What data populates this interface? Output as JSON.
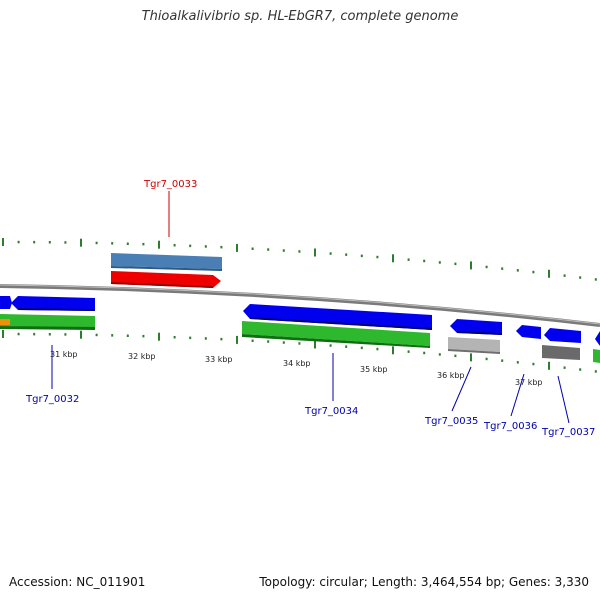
{
  "title": "Thioalkalivibrio sp. HL-EbGR7, complete genome",
  "footer": {
    "accession": "Accession: NC_011901",
    "topology": "Topology: circular; Length: 3,464,554 bp; Genes: 3,330"
  },
  "colors": {
    "cds_forward": "#0000ee",
    "cds_reverse": "#2db82d",
    "highlight": "#ee0000",
    "steel": "#4a7fb5",
    "tick": "#2e7d2e",
    "backbone": "#7a7a7a",
    "gray_feature": "#b4b4b4",
    "dark_gray_feature": "#6a6a6a",
    "orange_feature": "#f0900a",
    "label_blue": "#0000aa",
    "label_red": "#cc0000"
  },
  "scale_labels": [
    "31 kbp",
    "32 kbp",
    "33 kbp",
    "34 kbp",
    "35 kbp",
    "36 kbp",
    "37 kbp"
  ],
  "gene_labels": [
    "Tgr7_0033",
    "Tgr7_0032",
    "Tgr7_0034",
    "Tgr7_0035",
    "Tgr7_0036",
    "Tgr7_0037"
  ]
}
